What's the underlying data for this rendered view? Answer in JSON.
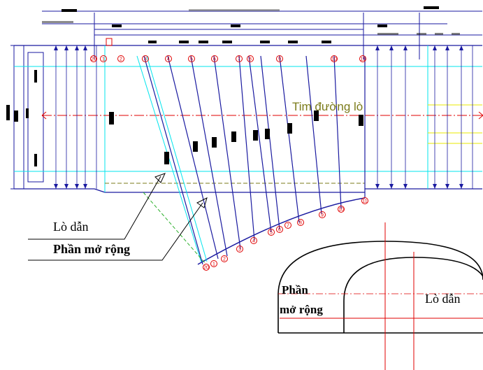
{
  "labels": {
    "tim_duong_lo": "Tim đường lò",
    "lo_dan": "Lò dẫn",
    "phan_mo_rong": "Phần mở rộng",
    "section_phan": "Phần",
    "section_mo_rong": "mở rộng",
    "section_lo_dan": "Lò dẫn"
  },
  "colors": {
    "cad_blue": "#1a1aa0",
    "cyan": "#00e5ee",
    "red": "#e00000",
    "olive": "#7b7b1a",
    "green": "#2bb02b",
    "yellow": "#e8e800",
    "brown": "#8b7a3a"
  },
  "markers_top": [
    "20",
    "1",
    "2",
    "3",
    "4",
    "5",
    "6",
    "7",
    "8",
    "9",
    "10",
    "11"
  ],
  "markers_arc": [
    "20",
    "1",
    "2",
    "3",
    "4",
    "5",
    "6",
    "7",
    "8",
    "9",
    "10",
    "11"
  ]
}
